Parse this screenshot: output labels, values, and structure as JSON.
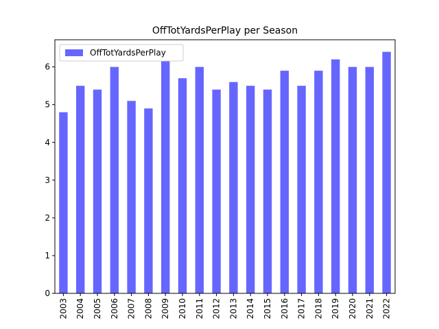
{
  "chart_data": {
    "type": "bar",
    "title": "OffTotYardsPerPlay per Season",
    "categories": [
      "2003",
      "2004",
      "2005",
      "2006",
      "2007",
      "2008",
      "2009",
      "2010",
      "2011",
      "2012",
      "2013",
      "2014",
      "2015",
      "2016",
      "2017",
      "2018",
      "2019",
      "2020",
      "2021",
      "2022"
    ],
    "series": [
      {
        "name": "OffTotYardsPerPlay",
        "color": "#6666ff",
        "values": [
          4.8,
          5.5,
          5.4,
          6.0,
          5.1,
          4.9,
          6.3,
          5.7,
          6.0,
          5.4,
          5.6,
          5.5,
          5.4,
          5.9,
          5.5,
          5.9,
          6.2,
          6.0,
          6.0,
          6.4
        ]
      }
    ],
    "ylim": [
      0,
      6.72
    ],
    "yticks": [
      0,
      1,
      2,
      3,
      4,
      5,
      6
    ],
    "legend": "upper left"
  }
}
